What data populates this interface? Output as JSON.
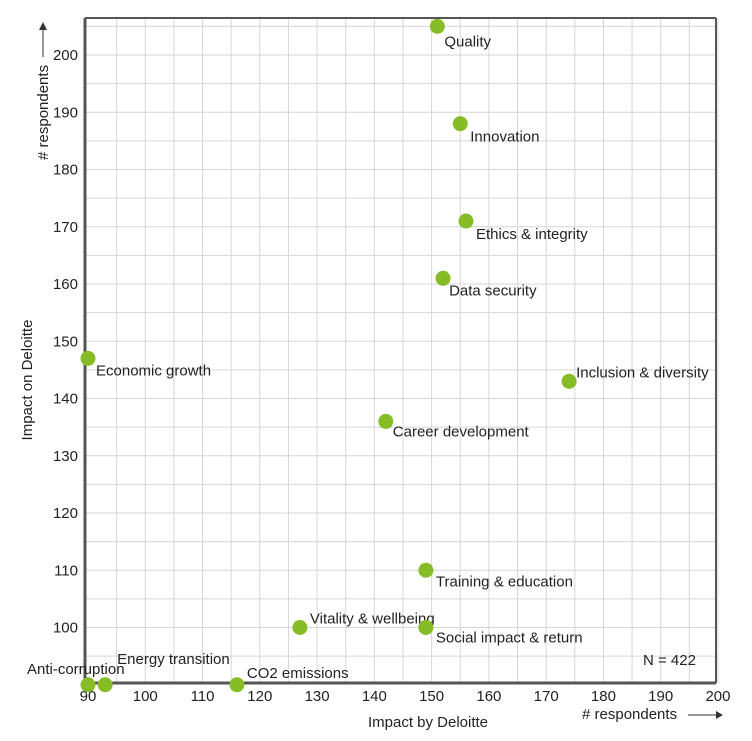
{
  "chart_data": {
    "type": "scatter",
    "xlabel": "Impact by Deloitte",
    "ylabel": "Impact on Deloitte",
    "x_unit_label": "# respondents",
    "y_unit_label": "# respondents",
    "xlim": [
      90,
      200
    ],
    "ylim": [
      90,
      205
    ],
    "x_ticks": [
      90,
      100,
      110,
      120,
      130,
      140,
      150,
      160,
      170,
      180,
      190,
      200
    ],
    "y_ticks": [
      100,
      110,
      120,
      130,
      140,
      150,
      160,
      170,
      180,
      190,
      200
    ],
    "grid": true,
    "note": "N = 422",
    "point_color": "#86bc25",
    "points": [
      {
        "label": "Quality",
        "x": 151,
        "y": 205
      },
      {
        "label": "Innovation",
        "x": 155,
        "y": 188
      },
      {
        "label": "Ethics & integrity",
        "x": 156,
        "y": 171
      },
      {
        "label": "Data security",
        "x": 152,
        "y": 161
      },
      {
        "label": "Economic growth",
        "x": 90,
        "y": 147
      },
      {
        "label": "Inclusion & diversity",
        "x": 174,
        "y": 143
      },
      {
        "label": "Career development",
        "x": 142,
        "y": 136
      },
      {
        "label": "Training & education",
        "x": 149,
        "y": 110
      },
      {
        "label": "Vitality & wellbeing",
        "x": 127,
        "y": 100
      },
      {
        "label": "Social impact & return",
        "x": 149,
        "y": 100
      },
      {
        "label": "Anti-corruption",
        "x": 90,
        "y": 90
      },
      {
        "label": "Energy transition",
        "x": 93,
        "y": 90
      },
      {
        "label": "CO2 emissions",
        "x": 116,
        "y": 90
      }
    ]
  }
}
